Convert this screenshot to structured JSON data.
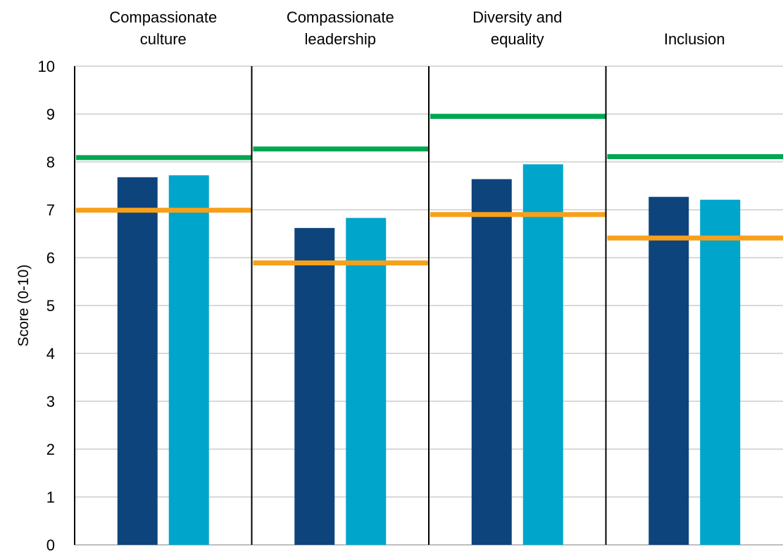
{
  "chart_data": {
    "type": "bar",
    "title": "",
    "xlabel": "",
    "ylabel": "Score (0-10)",
    "ylim": [
      0,
      10
    ],
    "yticks": [
      0,
      1,
      2,
      3,
      4,
      5,
      6,
      7,
      8,
      9,
      10
    ],
    "grid": true,
    "categories": [
      [
        "Compassionate",
        "culture"
      ],
      [
        "Compassionate",
        "leadership"
      ],
      [
        "Diversity and",
        "equality"
      ],
      [
        "Inclusion"
      ]
    ],
    "series": [
      {
        "type": "bar",
        "color": "#0e447c",
        "values": [
          7.68,
          6.62,
          7.64,
          7.27
        ]
      },
      {
        "type": "bar",
        "color": "#00a5cb",
        "values": [
          7.72,
          6.83,
          7.95,
          7.21
        ]
      },
      {
        "type": "line",
        "color": "#00a650",
        "values": [
          8.09,
          8.27,
          8.95,
          8.11
        ]
      },
      {
        "type": "line",
        "color": "#f7a01b",
        "values": [
          6.99,
          5.89,
          6.9,
          6.41
        ]
      }
    ]
  }
}
